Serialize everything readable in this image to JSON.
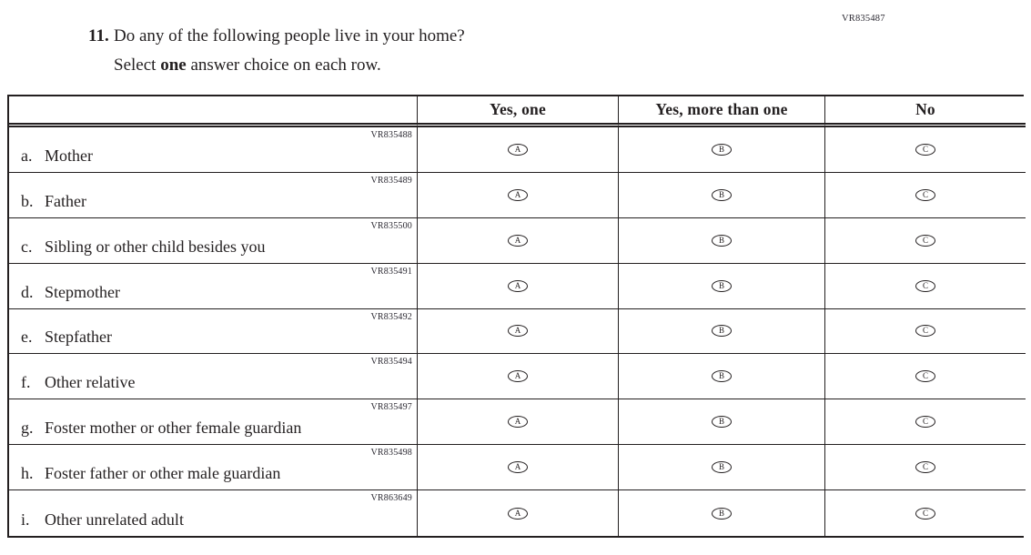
{
  "page": {
    "top_right_code": "VR835487",
    "question_number": "11.",
    "question_text": "Do any of the following people live in your home?",
    "instruction_prefix": "Select ",
    "instruction_bold": "one",
    "instruction_suffix": " answer choice on each row."
  },
  "table": {
    "columns": [
      "Yes, one",
      "Yes, more than one",
      "No"
    ],
    "options": [
      "A",
      "B",
      "C"
    ],
    "rows": [
      {
        "letter": "a.",
        "label": "Mother",
        "code": "VR835488"
      },
      {
        "letter": "b.",
        "label": "Father",
        "code": "VR835489"
      },
      {
        "letter": "c.",
        "label": "Sibling or other child besides you",
        "code": "VR835500"
      },
      {
        "letter": "d.",
        "label": "Stepmother",
        "code": "VR835491"
      },
      {
        "letter": "e.",
        "label": "Stepfather",
        "code": "VR835492"
      },
      {
        "letter": "f.",
        "label": "Other relative",
        "code": "VR835494"
      },
      {
        "letter": "g.",
        "label": "Foster mother or other female guardian",
        "code": "VR835497"
      },
      {
        "letter": "h.",
        "label": "Foster father or other male guardian",
        "code": "VR835498"
      },
      {
        "letter": "i.",
        "label": "Other unrelated adult",
        "code": "VR863649"
      }
    ]
  },
  "colors": {
    "text": "#231f20",
    "border": "#231f20",
    "background": "#ffffff"
  }
}
